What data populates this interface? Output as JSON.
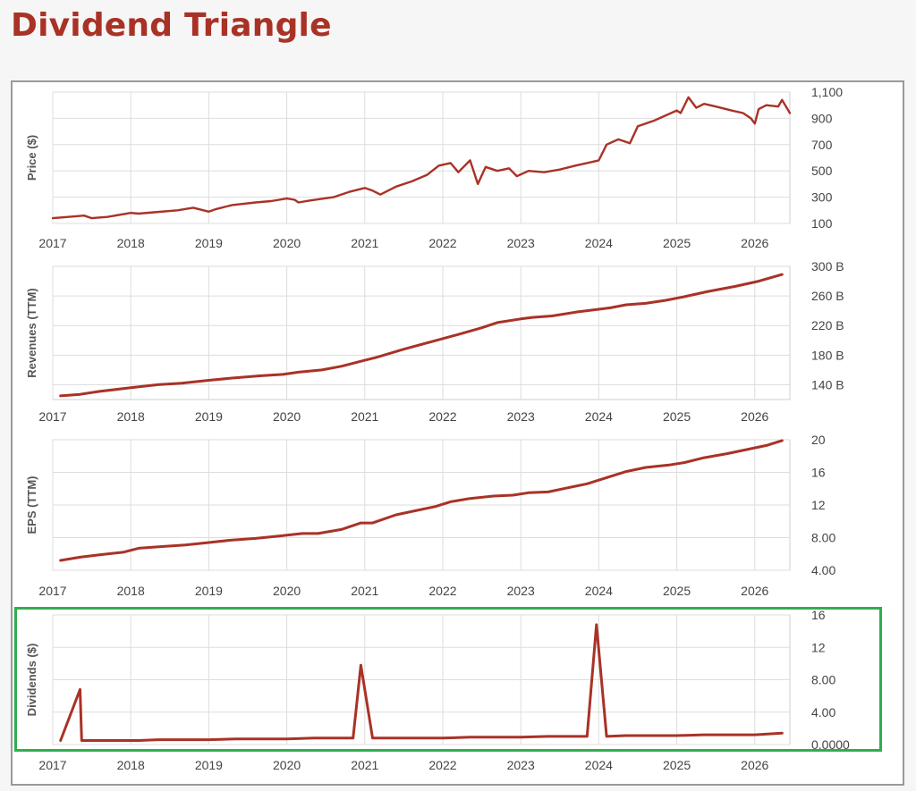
{
  "page": {
    "title": "Dividend Triangle"
  },
  "colors": {
    "title": "#a93226",
    "series": "#a93226",
    "grid": "#dddddd",
    "highlight_border": "#2fae4e"
  },
  "chart_data": [
    {
      "type": "line",
      "ylabel": "Price ($)",
      "xlim": [
        2017,
        2026.45
      ],
      "ylim": [
        100,
        1100
      ],
      "yticks": [
        "100",
        "300",
        "500",
        "700",
        "900",
        "1,100"
      ],
      "ytick_values": [
        100,
        300,
        500,
        700,
        900,
        1100
      ],
      "xticks": [
        "2017",
        "2018",
        "2019",
        "2020",
        "2021",
        "2022",
        "2023",
        "2024",
        "2025",
        "2026"
      ],
      "grid": true,
      "series": [
        {
          "x": [
            2017.0,
            2017.2,
            2017.4,
            2017.5,
            2017.7,
            2018.0,
            2018.1,
            2018.3,
            2018.6,
            2018.8,
            2019.0,
            2019.1,
            2019.3,
            2019.6,
            2019.8,
            2020.0,
            2020.1,
            2020.15,
            2020.3,
            2020.6,
            2020.8,
            2021.0,
            2021.1,
            2021.2,
            2021.4,
            2021.6,
            2021.8,
            2021.95,
            2022.1,
            2022.2,
            2022.35,
            2022.45,
            2022.55,
            2022.7,
            2022.85,
            2022.95,
            2023.1,
            2023.3,
            2023.5,
            2023.7,
            2023.85,
            2024.0,
            2024.1,
            2024.25,
            2024.4,
            2024.5,
            2024.7,
            2024.85,
            2025.0,
            2025.05,
            2025.15,
            2025.25,
            2025.35,
            2025.5,
            2025.7,
            2025.85,
            2025.95,
            2026.0,
            2026.05,
            2026.15,
            2026.3,
            2026.35,
            2026.45
          ],
          "y": [
            140,
            150,
            160,
            140,
            150,
            180,
            175,
            185,
            200,
            220,
            190,
            210,
            240,
            260,
            270,
            290,
            280,
            260,
            275,
            300,
            340,
            370,
            350,
            320,
            380,
            420,
            470,
            540,
            560,
            490,
            580,
            400,
            530,
            500,
            520,
            460,
            500,
            490,
            510,
            540,
            560,
            580,
            700,
            740,
            710,
            840,
            880,
            920,
            960,
            940,
            1060,
            980,
            1010,
            990,
            960,
            940,
            900,
            860,
            970,
            1000,
            990,
            1040,
            940
          ]
        }
      ]
    },
    {
      "type": "line",
      "ylabel": "Revenues (TTM)",
      "xlim": [
        2017,
        2026.45
      ],
      "ylim": [
        120,
        300
      ],
      "yticks": [
        "140 B",
        "180 B",
        "220 B",
        "260 B",
        "300 B"
      ],
      "ytick_values": [
        140,
        180,
        220,
        260,
        300
      ],
      "xticks": [
        "2017",
        "2018",
        "2019",
        "2020",
        "2021",
        "2022",
        "2023",
        "2024",
        "2025",
        "2026"
      ],
      "grid": true,
      "series": [
        {
          "x": [
            2017.1,
            2017.35,
            2017.6,
            2018.0,
            2018.35,
            2018.65,
            2019.0,
            2019.3,
            2019.65,
            2019.95,
            2020.15,
            2020.45,
            2020.7,
            2021.0,
            2021.15,
            2021.5,
            2021.85,
            2022.2,
            2022.5,
            2022.7,
            2023.0,
            2023.15,
            2023.4,
            2023.7,
            2024.0,
            2024.15,
            2024.35,
            2024.6,
            2024.85,
            2025.1,
            2025.4,
            2025.75,
            2026.05,
            2026.35
          ],
          "y": [
            125,
            127,
            131,
            136,
            140,
            142,
            146,
            149,
            152,
            154,
            157,
            160,
            165,
            173,
            177,
            188,
            198,
            208,
            217,
            224,
            229,
            231,
            233,
            238,
            242,
            244,
            248,
            250,
            254,
            259,
            266,
            273,
            280,
            289
          ]
        }
      ]
    },
    {
      "type": "line",
      "ylabel": "EPS (TTM)",
      "xlim": [
        2017,
        2026.45
      ],
      "ylim": [
        4,
        20
      ],
      "yticks": [
        "4.00",
        "8.00",
        "12",
        "16",
        "20"
      ],
      "ytick_values": [
        4,
        8,
        12,
        16,
        20
      ],
      "xticks": [
        "2017",
        "2018",
        "2019",
        "2020",
        "2021",
        "2022",
        "2023",
        "2024",
        "2025",
        "2026"
      ],
      "grid": true,
      "series": [
        {
          "x": [
            2017.1,
            2017.35,
            2017.6,
            2017.9,
            2018.1,
            2018.4,
            2018.7,
            2019.0,
            2019.3,
            2019.6,
            2019.9,
            2020.2,
            2020.4,
            2020.7,
            2020.95,
            2021.1,
            2021.4,
            2021.65,
            2021.9,
            2022.1,
            2022.35,
            2022.65,
            2022.9,
            2023.1,
            2023.35,
            2023.6,
            2023.85,
            2024.05,
            2024.35,
            2024.6,
            2024.9,
            2025.1,
            2025.35,
            2025.65,
            2025.95,
            2026.15,
            2026.35
          ],
          "y": [
            5.2,
            5.6,
            5.9,
            6.2,
            6.7,
            6.9,
            7.1,
            7.4,
            7.7,
            7.9,
            8.2,
            8.5,
            8.5,
            9.0,
            9.8,
            9.8,
            10.8,
            11.3,
            11.8,
            12.4,
            12.8,
            13.1,
            13.2,
            13.5,
            13.6,
            14.1,
            14.6,
            15.2,
            16.1,
            16.6,
            16.9,
            17.2,
            17.8,
            18.3,
            18.9,
            19.3,
            19.9
          ]
        }
      ]
    },
    {
      "type": "line",
      "ylabel": "Dividends ($)",
      "xlim": [
        2017,
        2026.45
      ],
      "ylim": [
        0,
        16
      ],
      "yticks": [
        "0.0000",
        "4.00",
        "8.00",
        "12",
        "16"
      ],
      "ytick_values": [
        0,
        4,
        8,
        12,
        16
      ],
      "xticks": [
        "2017",
        "2018",
        "2019",
        "2020",
        "2021",
        "2022",
        "2023",
        "2024",
        "2025",
        "2026"
      ],
      "grid": true,
      "series": [
        {
          "x": [
            2017.1,
            2017.35,
            2017.37,
            2017.6,
            2018.0,
            2018.1,
            2018.35,
            2018.6,
            2019.0,
            2019.35,
            2019.6,
            2020.0,
            2020.35,
            2020.6,
            2020.85,
            2020.95,
            2021.1,
            2021.35,
            2021.6,
            2022.0,
            2022.35,
            2022.6,
            2023.0,
            2023.35,
            2023.6,
            2023.85,
            2023.97,
            2024.1,
            2024.35,
            2024.6,
            2025.0,
            2025.35,
            2025.6,
            2026.0,
            2026.35
          ],
          "y": [
            0.5,
            6.8,
            0.5,
            0.5,
            0.5,
            0.5,
            0.6,
            0.6,
            0.6,
            0.7,
            0.7,
            0.7,
            0.8,
            0.8,
            0.8,
            9.8,
            0.8,
            0.8,
            0.8,
            0.8,
            0.9,
            0.9,
            0.9,
            1.0,
            1.0,
            1.0,
            14.8,
            1.0,
            1.1,
            1.1,
            1.1,
            1.2,
            1.2,
            1.2,
            1.4
          ]
        }
      ]
    }
  ]
}
